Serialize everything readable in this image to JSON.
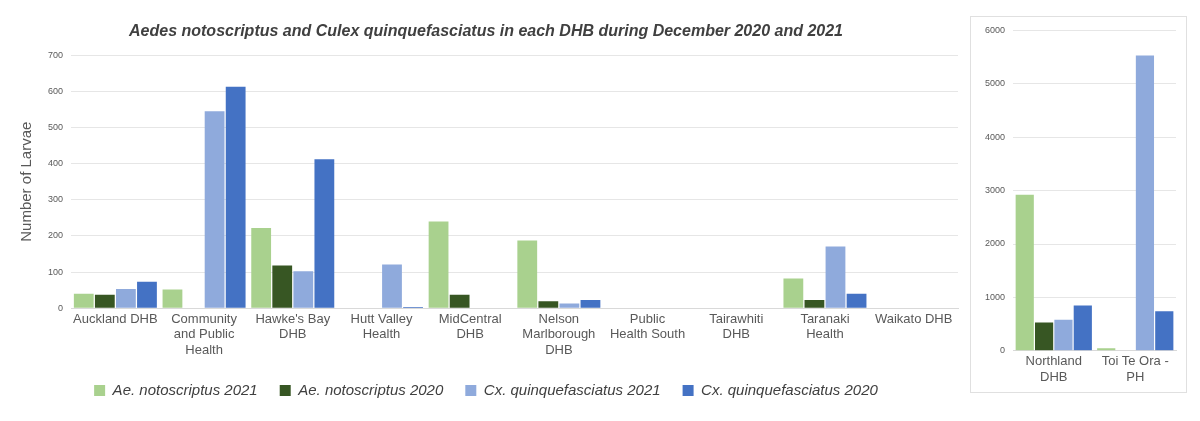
{
  "chart_data": [
    {
      "type": "bar",
      "title": "Aedes notoscriptus and Culex quinquefasciatus in each DHB during December 2020 and 2021",
      "ylabel": "Number of Larvae",
      "categories": [
        "Auckland DHB",
        "Community and Public Health",
        "Hawke's Bay DHB",
        "Hutt Valley Health",
        "MidCentral DHB",
        "Nelson Marlborough DHB",
        "Public Health South",
        "Tairawhiti DHB",
        "Taranaki Health",
        "Waikato DHB"
      ],
      "series": [
        {
          "name": "Ae. notoscriptus 2021",
          "color": "#a9d18e",
          "values": [
            40,
            52,
            222,
            0,
            240,
            187,
            0,
            0,
            82,
            0
          ]
        },
        {
          "name": "Ae. notoscriptus 2020",
          "color": "#375623",
          "values": [
            37,
            0,
            118,
            0,
            37,
            19,
            0,
            0,
            23,
            0
          ]
        },
        {
          "name": "Cx. quinquefasciatus 2021",
          "color": "#8faadc",
          "values": [
            53,
            545,
            102,
            121,
            0,
            13,
            0,
            0,
            171,
            0
          ]
        },
        {
          "name": "Cx. quinquefasciatus 2020",
          "color": "#4472c4",
          "values": [
            73,
            613,
            412,
            3,
            0,
            23,
            0,
            0,
            40,
            0
          ]
        }
      ],
      "ylim": [
        0,
        700
      ],
      "yticks": [
        0,
        100,
        200,
        300,
        400,
        500,
        600,
        700
      ],
      "grid": "y",
      "legend": "bottom"
    },
    {
      "type": "bar",
      "categories": [
        "Northland DHB",
        "Toi Te Ora - PH"
      ],
      "series": [
        {
          "color": "#a9d18e",
          "values": [
            2920,
            50
          ]
        },
        {
          "color": "#375623",
          "values": [
            530,
            0
          ]
        },
        {
          "color": "#8faadc",
          "values": [
            580,
            5530
          ]
        },
        {
          "color": "#4472c4",
          "values": [
            850,
            740
          ]
        }
      ],
      "ylim": [
        0,
        6000
      ],
      "yticks": [
        0,
        1000,
        2000,
        3000,
        4000,
        5000,
        6000
      ],
      "grid": "y"
    }
  ]
}
